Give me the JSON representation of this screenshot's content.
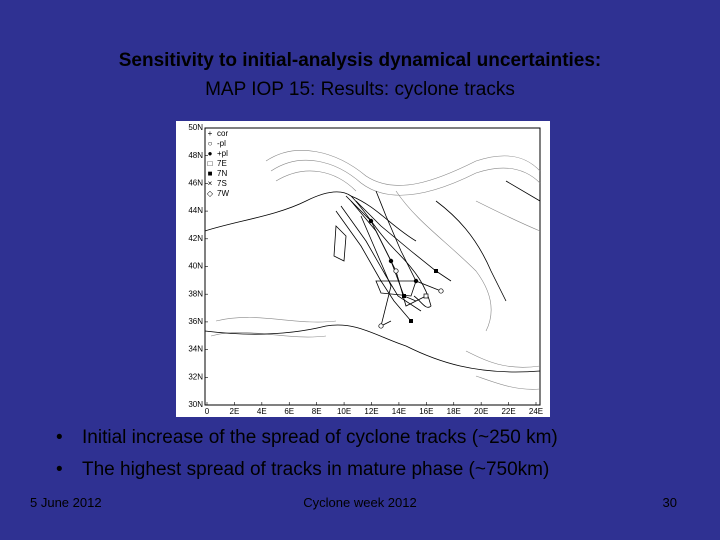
{
  "slide": {
    "title": "Sensitivity to initial-analysis dynamical uncertainties:",
    "subtitle": "MAP IOP 15: Results: cyclone tracks",
    "figure": {
      "lat_labels": [
        "50N",
        "48N",
        "46N",
        "44N",
        "42N",
        "40N",
        "38N",
        "36N",
        "34N",
        "32N",
        "30N"
      ],
      "lon_labels": [
        "0",
        "2E",
        "4E",
        "6E",
        "8E",
        "10E",
        "12E",
        "14E",
        "16E",
        "18E",
        "20E",
        "22E",
        "24E"
      ],
      "legend": [
        "cor",
        "-pl",
        "+pl",
        "7E",
        "7N",
        "7S",
        "7W"
      ]
    },
    "bullets": [
      "Initial increase of the spread of cyclone tracks (~250 km)",
      "The highest spread of tracks in mature phase (~750km)"
    ],
    "footer": {
      "date": "5 June 2012",
      "event": "Cyclone week 2012",
      "page": "30"
    }
  }
}
